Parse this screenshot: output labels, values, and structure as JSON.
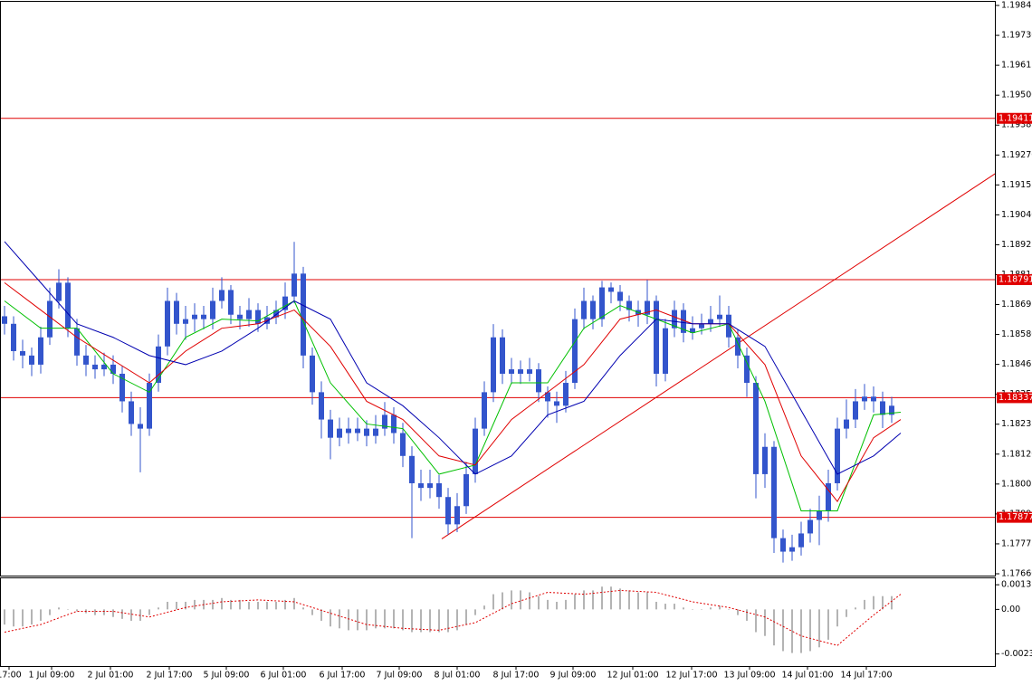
{
  "chart_data": [
    {
      "type": "candlestick",
      "color": "#3355cc",
      "grid": true,
      "xlim": [
        -0.5,
        109.5
      ],
      "ylim": [
        1.17653,
        1.19859
      ],
      "yticks": [
        1.19845,
        {
          "value": 1.1973,
          "label": "1.19730"
        },
        1.19615,
        {
          "value": 1.195,
          "label": "1.19500"
        },
        1.19385,
        {
          "value": 1.1927,
          "label": "1.19270"
        },
        1.19155,
        {
          "value": 1.1904,
          "label": "1.19040"
        },
        1.18925,
        {
          "value": 1.1881,
          "label": "1.18810"
        },
        1.18695,
        {
          "value": 1.1858,
          "label": "1.18580"
        },
        1.18465,
        {
          "value": 1.1835,
          "label": "1.18350"
        },
        1.18235,
        {
          "value": 1.1812,
          "label": "1.18120"
        },
        1.18005,
        {
          "value": 1.1789,
          "label": "1.17890"
        },
        1.17775,
        {
          "value": 1.1766,
          "label": "1.17660"
        }
      ],
      "xticks": [
        {
          "value": 0.5,
          "label": "17:00"
        },
        {
          "value": 5.2,
          "label": "1 Jul 09:00"
        },
        {
          "value": 11.7,
          "label": "2 Jul 01:00"
        },
        {
          "value": 18.2,
          "label": "2 Jul 17:00"
        },
        {
          "value": 24.5,
          "label": "5 Jul 09:00"
        },
        {
          "value": 30.8,
          "label": "6 Jul 01:00"
        },
        {
          "value": 37.3,
          "label": "6 Jul 17:00"
        },
        {
          "value": 43.6,
          "label": "7 Jul 09:00"
        },
        {
          "value": 50,
          "label": "8 Jul 01:00"
        },
        {
          "value": 56.5,
          "label": "8 Jul 17:00"
        },
        {
          "value": 62.8,
          "label": "9 Jul 09:00"
        },
        {
          "value": 69.4,
          "label": "12 Jul 01:00"
        },
        {
          "value": 75.9,
          "label": "12 Jul 17:00"
        },
        {
          "value": 82.3,
          "label": "13 Jul 09:00"
        },
        {
          "value": 88.7,
          "label": "14 Jul 01:00"
        },
        {
          "value": 95.2,
          "label": "14 Jul 17:00"
        }
      ],
      "levels": [
        1.19411,
        1.18791,
        1.18337,
        1.17877
      ],
      "level_color": "#e00000",
      "trendline": {
        "color": "#e00000",
        "x": [
          48.3,
          109.5
        ],
        "values": [
          1.17794,
          1.192
        ]
      },
      "candles": [
        [
          1.1865,
          1.1869,
          1.1858,
          1.18621
        ],
        [
          1.18621,
          1.1865,
          1.1848,
          1.18516
        ],
        [
          1.18516,
          1.1856,
          1.1845,
          1.18499
        ],
        [
          1.18499,
          1.1853,
          1.1842,
          1.18464
        ],
        [
          1.18464,
          1.1861,
          1.1843,
          1.18569
        ],
        [
          1.18569,
          1.1876,
          1.1854,
          1.18709
        ],
        [
          1.18709,
          1.18831,
          1.1868,
          1.18779
        ],
        [
          1.18779,
          1.188,
          1.1857,
          1.18604
        ],
        [
          1.18604,
          1.1864,
          1.1846,
          1.18499
        ],
        [
          1.18499,
          1.1854,
          1.1842,
          1.18464
        ],
        [
          1.18464,
          1.185,
          1.1841,
          1.18446
        ],
        [
          1.18446,
          1.1851,
          1.1842,
          1.18464
        ],
        [
          1.18464,
          1.185,
          1.1839,
          1.18429
        ],
        [
          1.18429,
          1.1846,
          1.1828,
          1.18323
        ],
        [
          1.18323,
          1.1836,
          1.1819,
          1.18236
        ],
        [
          1.18236,
          1.183,
          1.1805,
          1.18218
        ],
        [
          1.18218,
          1.1843,
          1.1819,
          1.18394
        ],
        [
          1.18394,
          1.1858,
          1.1836,
          1.18534
        ],
        [
          1.18534,
          1.1876,
          1.185,
          1.18709
        ],
        [
          1.18709,
          1.1874,
          1.1858,
          1.18621
        ],
        [
          1.18621,
          1.1869,
          1.1856,
          1.18639
        ],
        [
          1.18639,
          1.187,
          1.1859,
          1.18656
        ],
        [
          1.18656,
          1.1869,
          1.186,
          1.18639
        ],
        [
          1.18639,
          1.1876,
          1.186,
          1.18709
        ],
        [
          1.18709,
          1.188,
          1.1868,
          1.18751
        ],
        [
          1.18751,
          1.1877,
          1.1862,
          1.18656
        ],
        [
          1.18656,
          1.1869,
          1.186,
          1.18639
        ],
        [
          1.18639,
          1.1872,
          1.1861,
          1.18674
        ],
        [
          1.18674,
          1.187,
          1.1859,
          1.18621
        ],
        [
          1.18621,
          1.1869,
          1.186,
          1.18646
        ],
        [
          1.18646,
          1.1871,
          1.1862,
          1.18674
        ],
        [
          1.18674,
          1.1878,
          1.1864,
          1.18726
        ],
        [
          1.18726,
          1.18936,
          1.187,
          1.18814
        ],
        [
          1.18814,
          1.1884,
          1.1845,
          1.18499
        ],
        [
          1.18499,
          1.1853,
          1.1831,
          1.18358
        ],
        [
          1.18358,
          1.184,
          1.1818,
          1.18253
        ],
        [
          1.18253,
          1.1829,
          1.181,
          1.18183
        ],
        [
          1.18183,
          1.1826,
          1.1815,
          1.18218
        ],
        [
          1.18218,
          1.1826,
          1.1816,
          1.18201
        ],
        [
          1.18201,
          1.1826,
          1.1817,
          1.18218
        ],
        [
          1.18218,
          1.1825,
          1.1815,
          1.1819
        ],
        [
          1.1819,
          1.1827,
          1.1816,
          1.18218
        ],
        [
          1.18218,
          1.1832,
          1.1819,
          1.18271
        ],
        [
          1.18271,
          1.183,
          1.1816,
          1.18201
        ],
        [
          1.18201,
          1.1824,
          1.1807,
          1.18113
        ],
        [
          1.18113,
          1.1815,
          1.17797,
          1.18008
        ],
        [
          1.18008,
          1.1806,
          1.1794,
          1.1799
        ],
        [
          1.1799,
          1.1806,
          1.1795,
          1.18008
        ],
        [
          1.18008,
          1.1804,
          1.1791,
          1.17955
        ],
        [
          1.17955,
          1.1799,
          1.1781,
          1.1785
        ],
        [
          1.1785,
          1.1797,
          1.1782,
          1.1792
        ],
        [
          1.1792,
          1.1809,
          1.1789,
          1.18043
        ],
        [
          1.18043,
          1.1826,
          1.1801,
          1.18218
        ],
        [
          1.18218,
          1.184,
          1.1819,
          1.18358
        ],
        [
          1.18358,
          1.1862,
          1.1832,
          1.18569
        ],
        [
          1.18569,
          1.186,
          1.1839,
          1.18429
        ],
        [
          1.18429,
          1.1849,
          1.1839,
          1.18446
        ],
        [
          1.18446,
          1.1848,
          1.1839,
          1.18429
        ],
        [
          1.18429,
          1.1849,
          1.184,
          1.18446
        ],
        [
          1.18446,
          1.1847,
          1.1832,
          1.18358
        ],
        [
          1.18358,
          1.1838,
          1.1826,
          1.18323
        ],
        [
          1.18323,
          1.1836,
          1.1824,
          1.18306
        ],
        [
          1.18306,
          1.1844,
          1.1828,
          1.18394
        ],
        [
          1.18394,
          1.1868,
          1.1837,
          1.18639
        ],
        [
          1.18639,
          1.1876,
          1.186,
          1.18709
        ],
        [
          1.18709,
          1.1873,
          1.186,
          1.18639
        ],
        [
          1.18639,
          1.18786,
          1.1861,
          1.18761
        ],
        [
          1.18761,
          1.1878,
          1.187,
          1.18744
        ],
        [
          1.18744,
          1.1877,
          1.1867,
          1.18709
        ],
        [
          1.18709,
          1.1873,
          1.1863,
          1.18674
        ],
        [
          1.18674,
          1.1871,
          1.1861,
          1.18656
        ],
        [
          1.18656,
          1.1879,
          1.1862,
          1.18709
        ],
        [
          1.18709,
          1.1873,
          1.1838,
          1.18429
        ],
        [
          1.18429,
          1.1864,
          1.184,
          1.18604
        ],
        [
          1.18604,
          1.1871,
          1.1857,
          1.18674
        ],
        [
          1.18674,
          1.187,
          1.1855,
          1.18586
        ],
        [
          1.18586,
          1.1865,
          1.1856,
          1.18604
        ],
        [
          1.18604,
          1.1866,
          1.1858,
          1.18621
        ],
        [
          1.18621,
          1.1869,
          1.1859,
          1.18639
        ],
        [
          1.18639,
          1.1873,
          1.1861,
          1.18656
        ],
        [
          1.18656,
          1.1869,
          1.1853,
          1.18569
        ],
        [
          1.18569,
          1.186,
          1.1845,
          1.18499
        ],
        [
          1.18499,
          1.1853,
          1.1834,
          1.18394
        ],
        [
          1.18394,
          1.1842,
          1.1795,
          1.18043
        ],
        [
          1.18043,
          1.182,
          1.1799,
          1.18148
        ],
        [
          1.18148,
          1.1817,
          1.1774,
          1.17797
        ],
        [
          1.17797,
          1.1783,
          1.17703,
          1.17745
        ],
        [
          1.17745,
          1.1781,
          1.1771,
          1.17762
        ],
        [
          1.17762,
          1.1786,
          1.1773,
          1.17815
        ],
        [
          1.17815,
          1.1791,
          1.1778,
          1.17867
        ],
        [
          1.17867,
          1.1796,
          1.1777,
          1.17902
        ],
        [
          1.17902,
          1.1806,
          1.1786,
          1.18008
        ],
        [
          1.18008,
          1.1826,
          1.1798,
          1.18218
        ],
        [
          1.18218,
          1.1833,
          1.1818,
          1.18253
        ],
        [
          1.18253,
          1.1837,
          1.1822,
          1.18323
        ],
        [
          1.18323,
          1.1839,
          1.1829,
          1.18341
        ],
        [
          1.18341,
          1.1838,
          1.1828,
          1.18323
        ],
        [
          1.18323,
          1.1836,
          1.1822,
          1.18271
        ],
        [
          1.18271,
          1.1834,
          1.1824,
          1.18306
        ]
      ],
      "series": [
        {
          "color": "#00c000",
          "x": [
            0,
            4,
            8,
            12,
            16,
            20,
            24,
            28,
            32,
            36,
            40,
            44,
            48,
            52,
            56,
            60,
            64,
            68,
            72,
            76,
            80,
            84,
            88,
            92,
            96,
            99
          ],
          "values": [
            1.18709,
            1.18604,
            1.18604,
            1.18429,
            1.18358,
            1.18569,
            1.18639,
            1.18632,
            1.18709,
            1.18394,
            1.18236,
            1.18218,
            1.18043,
            1.18078,
            1.18394,
            1.18394,
            1.18604,
            1.18691,
            1.18639,
            1.18586,
            1.18621,
            1.18323,
            1.17902,
            1.17902,
            1.18271,
            1.18281
          ]
        },
        {
          "color": "#e00000",
          "x": [
            0,
            4,
            8,
            12,
            16,
            20,
            24,
            28,
            32,
            36,
            40,
            44,
            48,
            52,
            56,
            60,
            64,
            68,
            72,
            76,
            80,
            84,
            88,
            92,
            96,
            99
          ],
          "values": [
            1.18779,
            1.18674,
            1.18569,
            1.18481,
            1.18394,
            1.18516,
            1.18604,
            1.18621,
            1.18674,
            1.18534,
            1.18323,
            1.18253,
            1.18113,
            1.18078,
            1.18253,
            1.18358,
            1.18464,
            1.18639,
            1.18674,
            1.18621,
            1.18621,
            1.18464,
            1.18113,
            1.17938,
            1.18183,
            1.18253
          ]
        },
        {
          "color": "#0000b0",
          "x": [
            0,
            4,
            8,
            12,
            16,
            20,
            24,
            28,
            32,
            36,
            40,
            44,
            48,
            52,
            56,
            60,
            64,
            68,
            72,
            76,
            80,
            84,
            88,
            92,
            96,
            99
          ],
          "values": [
            1.18937,
            1.18779,
            1.18621,
            1.18569,
            1.18499,
            1.18464,
            1.18516,
            1.18604,
            1.18709,
            1.18639,
            1.18394,
            1.18306,
            1.18183,
            1.18043,
            1.18113,
            1.18271,
            1.18323,
            1.18499,
            1.18639,
            1.18621,
            1.18621,
            1.18534,
            1.18288,
            1.18043,
            1.18113,
            1.18201
          ]
        }
      ]
    },
    {
      "type": "oscillator",
      "color": "#b4b4b4",
      "xlim": [
        -0.5,
        109.5
      ],
      "ylim": [
        -0.00299,
        0.00164
      ],
      "yticks": [
        0.0013,
        {
          "value": 0,
          "label": "0.00"
        },
        -0.00235
      ],
      "values": [
        -0.0008,
        -0.0009,
        -0.0009,
        -0.0008,
        -0.0006,
        -0.0003,
        0.0001,
        0,
        -0.0001,
        -0.0002,
        -0.0003,
        -0.0003,
        -0.0004,
        -0.0005,
        -0.0006,
        -0.0006,
        -0.0003,
        0.0001,
        0.0004,
        0.0004,
        0.0004,
        0.0005,
        0.0005,
        0.0005,
        0.0006,
        0.0005,
        0.0005,
        0.0004,
        0.0004,
        0.0004,
        0.0004,
        0.0005,
        0.0006,
        0.0001,
        -0.0003,
        -0.0006,
        -0.0009,
        -0.001,
        -0.0011,
        -0.0011,
        -0.0011,
        -0.001,
        -0.001,
        -0.001,
        -0.0011,
        -0.0012,
        -0.0012,
        -0.0012,
        -0.0012,
        -0.0012,
        -0.0011,
        -0.0008,
        -0.0003,
        0.0002,
        0.0008,
        0.0009,
        0.001,
        0.001,
        0.0009,
        0.0007,
        0.0005,
        0.0004,
        0.0005,
        0.0008,
        0.001,
        0.001,
        0.0012,
        0.0012,
        0.0011,
        0.001,
        0.0009,
        0.0009,
        0.0004,
        0.0003,
        0.0003,
        0.0001,
        0,
        0,
        0.0001,
        0.0002,
        0,
        -0.0003,
        -0.0006,
        -0.0012,
        -0.0014,
        -0.0019,
        -0.0022,
        -0.0023,
        -0.0023,
        -0.0022,
        -0.002,
        -0.0016,
        -0.0009,
        -0.0004,
        0.0001,
        0.0005,
        0.0007,
        0.0007,
        0.0007
      ],
      "signal": {
        "color": "#e00000",
        "x": [
          0,
          4,
          8,
          12,
          16,
          20,
          24,
          28,
          32,
          36,
          40,
          44,
          48,
          52,
          56,
          60,
          64,
          68,
          72,
          76,
          80,
          84,
          88,
          92,
          96,
          99
        ],
        "values": [
          -0.0012,
          -0.0008,
          -0.0001,
          -0.0001,
          -0.0004,
          0.0001,
          0.0004,
          0.0005,
          0.0004,
          -0.0002,
          -0.0008,
          -0.001,
          -0.0011,
          -0.0007,
          0.0003,
          0.0009,
          0.0008,
          0.001,
          0.0009,
          0.0004,
          0.0001,
          -0.0004,
          -0.0014,
          -0.0019,
          -0.0003,
          0.0008
        ]
      }
    }
  ]
}
